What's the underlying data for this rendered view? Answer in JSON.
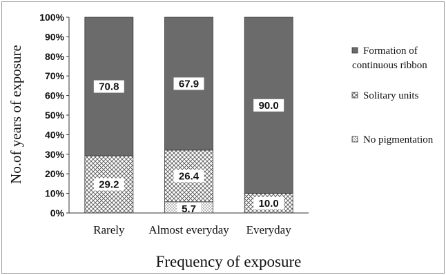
{
  "chart_data": {
    "type": "bar",
    "stacked": true,
    "percent_stacked": true,
    "title": "",
    "xlabel": "Frequency of exposure",
    "ylabel": "No.of  years of exposure",
    "categories": [
      "Rarely",
      "Almost everyday",
      "Everyday"
    ],
    "ylim": [
      0,
      100
    ],
    "yticks": [
      "0%",
      "10%",
      "20%",
      "30%",
      "40%",
      "50%",
      "60%",
      "70%",
      "80%",
      "90%",
      "100%"
    ],
    "legend_position": "right",
    "series": [
      {
        "name": "No pigmentation",
        "values": [
          0.0,
          5.7,
          0.0
        ],
        "labels": [
          "0.0",
          "5.7",
          "0.0"
        ],
        "pattern": "dots"
      },
      {
        "name": "Solitary units",
        "values": [
          29.2,
          26.4,
          10.0
        ],
        "labels": [
          "29.2",
          "26.4",
          "10.0"
        ],
        "pattern": "crosshatch"
      },
      {
        "name": "Formation of continuous ribbon",
        "values": [
          70.8,
          67.9,
          90.0
        ],
        "labels": [
          "70.8",
          "67.9",
          "90.0"
        ],
        "pattern": "solid"
      }
    ],
    "legend_lines": [
      [
        "Formation of",
        "continuous ribbon"
      ],
      [
        "Solitary units"
      ],
      [
        "No pigmentation"
      ]
    ]
  }
}
